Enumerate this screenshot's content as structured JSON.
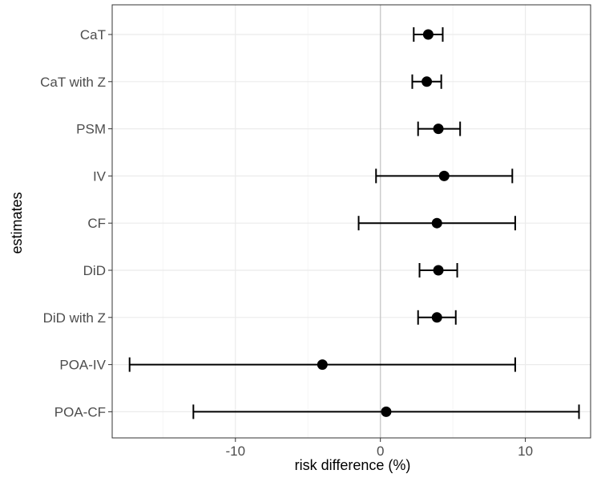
{
  "chart_data": {
    "type": "scatter",
    "subtype": "forest-plot",
    "xlabel": "risk difference (%)",
    "ylabel": "estimates",
    "xlim": [
      -18.5,
      14.5
    ],
    "x_ticks": [
      -10,
      0,
      10
    ],
    "x_tick_labels": [
      "-10",
      "0",
      "10"
    ],
    "reference_line_x": 0,
    "grid": true,
    "categories": [
      "CaT",
      "CaT with Z",
      "PSM",
      "IV",
      "CF",
      "DiD",
      "DiD with Z",
      "POA-IV",
      "POA-CF"
    ],
    "series": [
      {
        "estimates": [
          3.3,
          3.2,
          4.0,
          4.4,
          3.9,
          4.0,
          3.9,
          -4.0,
          0.4
        ],
        "lower": [
          2.3,
          2.2,
          2.6,
          -0.3,
          -1.5,
          2.7,
          2.6,
          -17.3,
          -12.9
        ],
        "upper": [
          4.3,
          4.2,
          5.5,
          9.1,
          9.3,
          5.3,
          5.2,
          9.3,
          13.7
        ]
      }
    ],
    "colors": {
      "point": "#000000",
      "error_bar": "#000000",
      "grid_major": "#ebebeb",
      "grid_minor": "#f5f5f5",
      "reference_line": "#cccccc",
      "panel_border": "#333333"
    }
  }
}
